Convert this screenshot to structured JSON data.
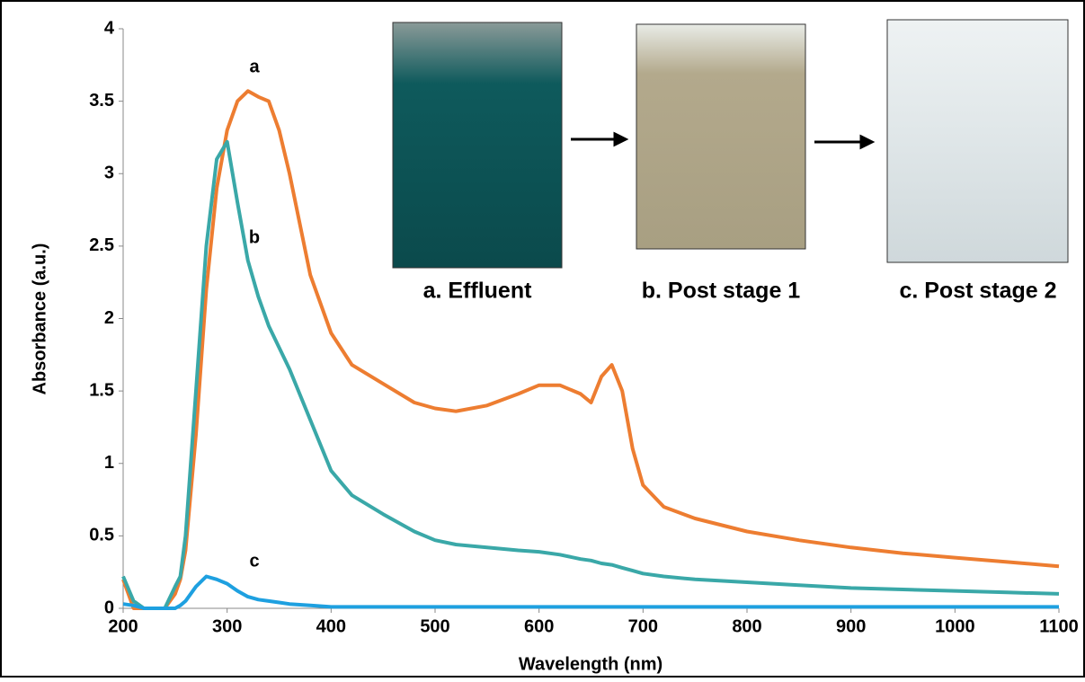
{
  "chart_data": {
    "type": "line",
    "x_label": "Wavelength (nm)",
    "y_label": "Absorbance (a.u.)",
    "annotations": [
      "a. Effluent",
      "b. Post stage 1",
      "c. Post stage 2"
    ],
    "x": [
      200,
      210,
      220,
      230,
      240,
      250,
      255,
      260,
      270,
      280,
      290,
      300,
      310,
      320,
      330,
      340,
      350,
      360,
      380,
      400,
      420,
      450,
      480,
      500,
      520,
      550,
      580,
      600,
      620,
      640,
      650,
      660,
      670,
      680,
      690,
      700,
      720,
      750,
      800,
      850,
      900,
      950,
      1000,
      1050,
      1100
    ],
    "series": [
      {
        "name": "a",
        "color": "#ed7d31",
        "values": [
          0.2,
          0,
          0,
          0,
          0,
          0.1,
          0.2,
          0.4,
          1.2,
          2.2,
          2.9,
          3.3,
          3.5,
          3.57,
          3.53,
          3.5,
          3.3,
          3.0,
          2.3,
          1.9,
          1.68,
          1.55,
          1.42,
          1.38,
          1.36,
          1.4,
          1.48,
          1.54,
          1.54,
          1.48,
          1.42,
          1.6,
          1.68,
          1.5,
          1.1,
          0.85,
          0.7,
          0.62,
          0.53,
          0.47,
          0.42,
          0.38,
          0.35,
          0.32,
          0.29
        ]
      },
      {
        "name": "b",
        "color": "#3aa8a8",
        "values": [
          0.22,
          0.05,
          0,
          0,
          0,
          0.15,
          0.22,
          0.5,
          1.5,
          2.5,
          3.1,
          3.22,
          2.8,
          2.4,
          2.15,
          1.95,
          1.8,
          1.65,
          1.3,
          0.95,
          0.78,
          0.65,
          0.53,
          0.47,
          0.44,
          0.42,
          0.4,
          0.39,
          0.37,
          0.34,
          0.33,
          0.31,
          0.3,
          0.28,
          0.26,
          0.24,
          0.22,
          0.2,
          0.18,
          0.16,
          0.14,
          0.13,
          0.12,
          0.11,
          0.1
        ]
      },
      {
        "name": "c",
        "color": "#1ea0e0",
        "values": [
          0.03,
          0.02,
          0,
          0,
          0,
          0,
          0.02,
          0.05,
          0.15,
          0.22,
          0.2,
          0.17,
          0.12,
          0.08,
          0.06,
          0.05,
          0.04,
          0.03,
          0.02,
          0.01,
          0.01,
          0.01,
          0.01,
          0.01,
          0.01,
          0.01,
          0.01,
          0.01,
          0.01,
          0.01,
          0.01,
          0.01,
          0.01,
          0.01,
          0.01,
          0.01,
          0.01,
          0.01,
          0.01,
          0.01,
          0.01,
          0.01,
          0.01,
          0.01,
          0.01
        ]
      }
    ],
    "xlim": [
      200,
      1100
    ],
    "xticks": [
      200,
      300,
      400,
      500,
      600,
      700,
      800,
      900,
      1000,
      1100
    ],
    "ylim": [
      0,
      4
    ],
    "yticks": [
      0,
      0.5,
      1,
      1.5,
      2,
      2.5,
      3,
      3.5,
      4
    ],
    "grid": false
  }
}
